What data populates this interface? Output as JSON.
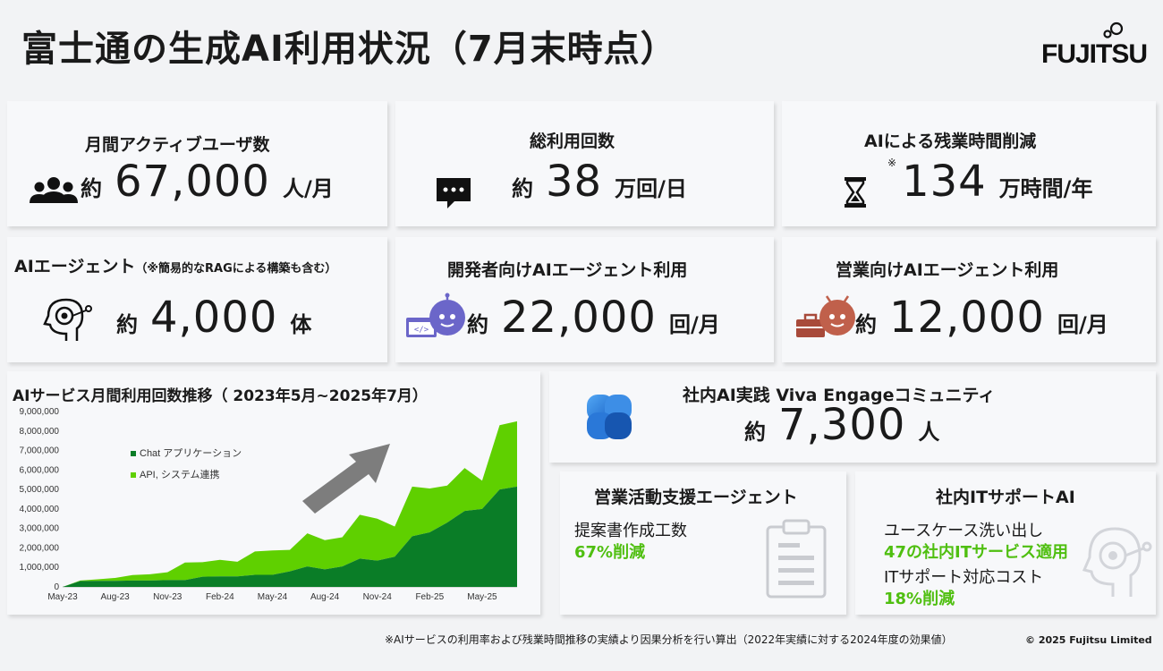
{
  "header": {
    "title": "富士通の生成AI利用状況（7月末時点）",
    "logo_text": "FUJITSU"
  },
  "cards": {
    "mau": {
      "title": "月間アクティブユーザ数",
      "prefix": "約",
      "value": "67,000",
      "unit": "人/月",
      "icon": "users-icon"
    },
    "usage": {
      "title": "総利用回数",
      "prefix": "約",
      "value": "38",
      "unit": "万回/日",
      "icon": "chat-bubble-icon"
    },
    "overtime": {
      "title": "AIによる残業時間削減",
      "note": "※",
      "value": "134",
      "unit": "万時間/年",
      "icon": "hourglass-icon"
    },
    "agent": {
      "title": "AIエージェント",
      "title_sub": "（※簡易的なRAGによる構築も含む）",
      "prefix": "約",
      "value": "4,000",
      "unit": "体",
      "icon": "ai-head-icon"
    },
    "dev_agent": {
      "title": "開発者向けAIエージェント利用",
      "prefix": "約",
      "value": "22,000",
      "unit": "回/月",
      "icon": "developer-bot-icon"
    },
    "sales_agent": {
      "title": "営業向けAIエージェント利用",
      "prefix": "約",
      "value": "12,000",
      "unit": "回/月",
      "icon": "sales-bot-icon"
    },
    "community": {
      "title": "社内AI実践 Viva Engageコミュニティ",
      "prefix": "約",
      "value": "7,300",
      "unit": "人",
      "icon": "viva-engage-icon"
    },
    "sales_support": {
      "title": "営業活動支援エージェント",
      "line1": "提案書作成工数",
      "line2": "67%削減",
      "icon": "clipboard-icon"
    },
    "it_support": {
      "title": "社内ITサポートAI",
      "line1": "ユースケース洗い出し",
      "line2": "47の社内ITサービス適用",
      "line3": "ITサポート対応コスト",
      "line4": "18%削減",
      "icon": "ai-head-icon"
    }
  },
  "chart_data": {
    "type": "area",
    "title": "AIサービス月間利用回数推移（ 2023年5月~2025年7月）",
    "y_ticks": [
      "9,000,000",
      "8,000,000",
      "7,000,000",
      "6,000,000",
      "5,000,000",
      "4,000,000",
      "3,000,000",
      "2,000,000",
      "1,000,000",
      "0"
    ],
    "x_ticks": [
      "May-23",
      "Aug-23",
      "Nov-23",
      "Feb-24",
      "May-24",
      "Aug-24",
      "Nov-24",
      "Feb-25",
      "May-25"
    ],
    "ylim": [
      0,
      9000000
    ],
    "stacked": true,
    "legend_position": "top-left",
    "series": [
      {
        "name": "Chat アプリケーション",
        "color": "#0a7d27",
        "values": [
          0,
          300000,
          310000,
          310000,
          330000,
          330000,
          350000,
          350000,
          520000,
          540000,
          540000,
          620000,
          620000,
          800000,
          1050000,
          900000,
          1050000,
          1450000,
          1350000,
          1550000,
          2600000,
          2800000,
          3300000,
          3900000,
          4000000,
          5000000,
          5150000
        ]
      },
      {
        "name": "API, システム連携",
        "color": "#5fd000",
        "values": [
          0,
          30000,
          80000,
          150000,
          280000,
          320000,
          400000,
          900000,
          750000,
          850000,
          750000,
          1200000,
          1250000,
          1100000,
          1700000,
          1500000,
          1500000,
          2250000,
          2150000,
          1550000,
          2550000,
          2250000,
          1900000,
          2200000,
          1450000,
          3300000,
          3350000
        ]
      }
    ]
  },
  "footer": {
    "footnote": "※AIサービスの利用率および残業時間推移の実績より因果分析を行い算出（2022年実績に対する2024年度の効果値）",
    "copyright": "© 2025 Fujitsu Limited"
  }
}
